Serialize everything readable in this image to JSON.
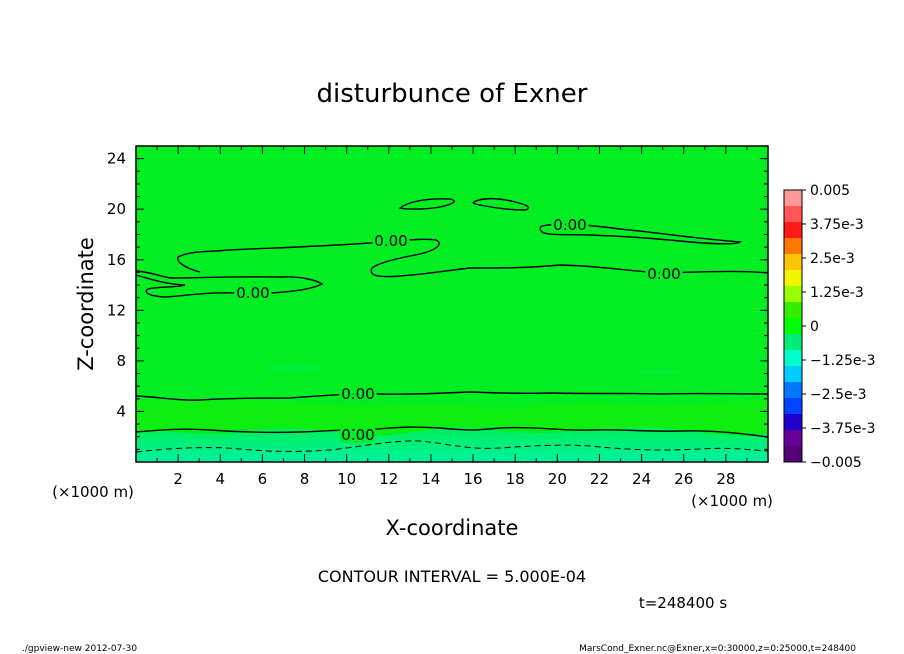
{
  "chart_data": {
    "type": "contour",
    "title": "disturbunce of Exner",
    "xlabel": "X-coordinate",
    "ylabel": "Z-coordinate",
    "x_unit": "(×1000 m)",
    "y_unit": "(×1000 m)",
    "xlim": [
      0,
      30
    ],
    "ylim": [
      0,
      25
    ],
    "x_ticks": [
      2,
      4,
      6,
      8,
      10,
      12,
      14,
      16,
      18,
      20,
      22,
      24,
      26,
      28
    ],
    "y_ticks": [
      4,
      8,
      12,
      16,
      20,
      24
    ],
    "contour_interval_text": "CONTOUR INTERVAL = 5.000E-04",
    "time_text": "t=248400 s",
    "contour_labels": [
      "0.00",
      "0.00",
      "0.00",
      "0.00",
      "0.00",
      "0.00"
    ],
    "colorbar": {
      "tick_labels": [
        "0.005",
        "3.75e-3",
        "2.5e-3",
        "1.25e-3",
        "0",
        "-1.25e-3",
        "-2.5e-3",
        "-3.75e-3",
        "-0.005"
      ],
      "range": [
        -0.005,
        0.005
      ],
      "colors": [
        "#ff9999",
        "#ff5555",
        "#ff1a1a",
        "#ff7700",
        "#ffc400",
        "#f4f400",
        "#99ff00",
        "#33ee00",
        "#00ff00",
        "#00ee77",
        "#00ffcc",
        "#00ccff",
        "#0077ff",
        "#0044ff",
        "#2200cc",
        "#660099",
        "#550077"
      ],
      "background_color": "#00ee22"
    },
    "footer_left": "./gpview-new  2012-07-30",
    "footer_right": "MarsCond_Exner.nc@Exner,x=0:30000,z=0:25000,t=248400"
  }
}
